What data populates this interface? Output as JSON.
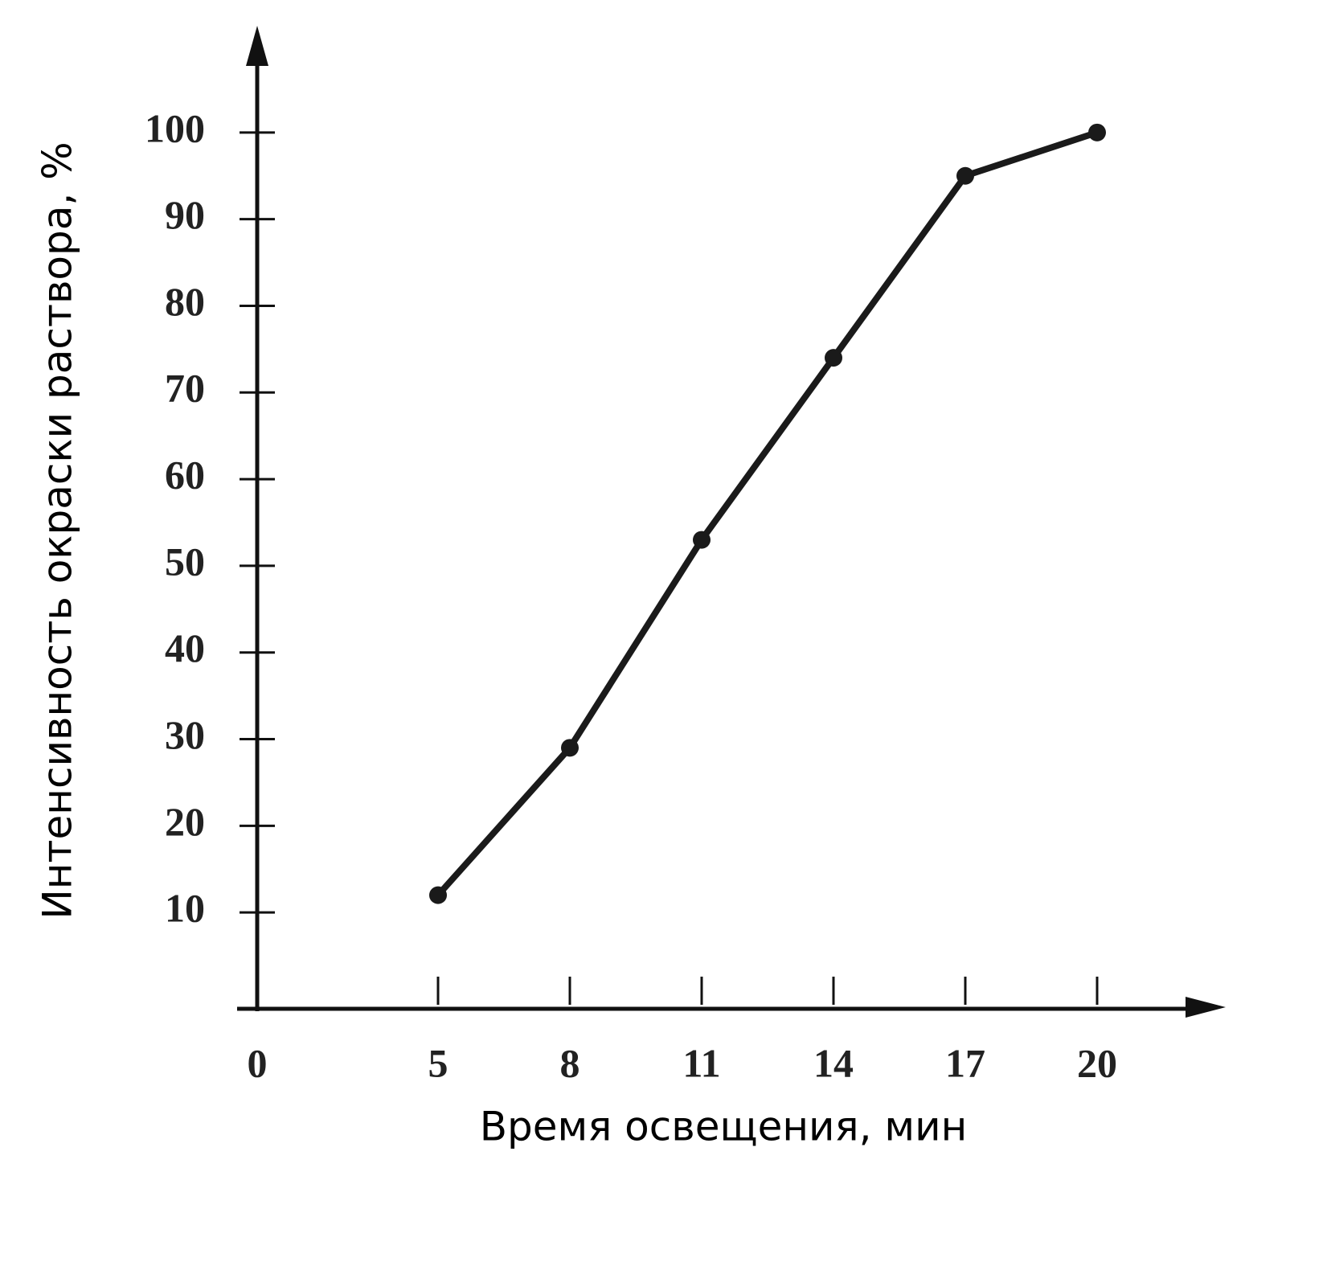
{
  "chart_data": {
    "type": "line",
    "x_label": "Время освещения, мин",
    "y_label": "Интенсивность окраски раствора, %",
    "categories": [
      "0",
      "5",
      "8",
      "11",
      "14",
      "17",
      "20"
    ],
    "values": [
      null,
      12,
      29,
      53,
      74,
      95,
      100
    ],
    "color": "#1a1a1a",
    "ylim": [
      0,
      110
    ],
    "yticks": [
      10,
      20,
      30,
      40,
      50,
      60,
      70,
      80,
      90,
      100
    ],
    "grid": false
  }
}
